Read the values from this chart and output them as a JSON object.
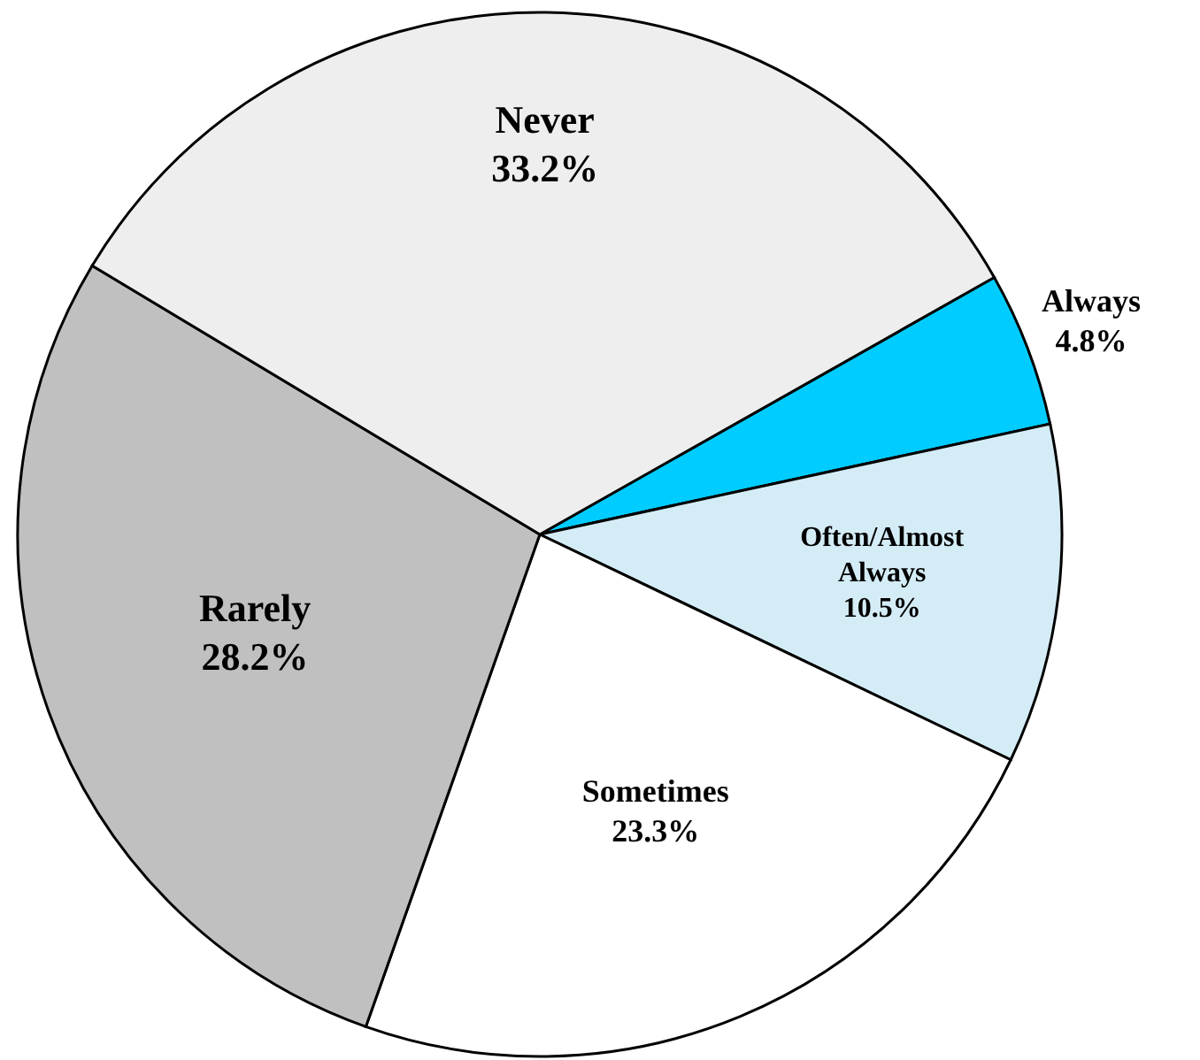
{
  "chart_data": {
    "type": "pie",
    "categories": [
      "Always",
      "Often/Almost Always",
      "Sometimes",
      "Rarely",
      "Never"
    ],
    "values": [
      4.8,
      10.5,
      23.3,
      28.2,
      33.2
    ],
    "value_labels": [
      "4.8%",
      "10.5%",
      "23.3%",
      "28.2%",
      "33.2%"
    ],
    "colors": [
      "#00ccff",
      "#d4ecf6",
      "#ffffff",
      "#c0c0c0",
      "#eeeeee"
    ]
  }
}
